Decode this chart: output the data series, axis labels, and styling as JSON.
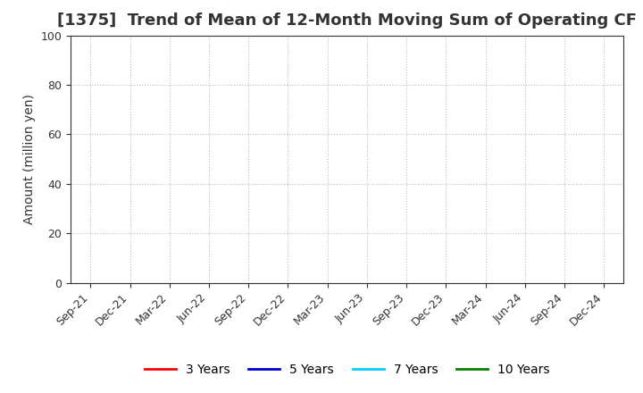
{
  "title": "[1375]  Trend of Mean of 12-Month Moving Sum of Operating CF",
  "ylabel": "Amount (million yen)",
  "ylim": [
    0,
    100
  ],
  "yticks": [
    0,
    20,
    40,
    60,
    80,
    100
  ],
  "x_labels": [
    "Sep-21",
    "Dec-21",
    "Mar-22",
    "Jun-22",
    "Sep-22",
    "Dec-22",
    "Mar-23",
    "Jun-23",
    "Sep-23",
    "Dec-23",
    "Mar-24",
    "Jun-24",
    "Sep-24",
    "Dec-24"
  ],
  "legend_entries": [
    {
      "label": "3 Years",
      "color": "#ff0000"
    },
    {
      "label": "5 Years",
      "color": "#0000cd"
    },
    {
      "label": "7 Years",
      "color": "#00ccff"
    },
    {
      "label": "10 Years",
      "color": "#008000"
    }
  ],
  "background_color": "#ffffff",
  "grid_color": "#bbbbbb",
  "title_fontsize": 13,
  "title_color": "#333333",
  "axis_label_fontsize": 10,
  "tick_fontsize": 9,
  "legend_fontsize": 10,
  "figsize": [
    7.2,
    4.4
  ],
  "dpi": 100
}
